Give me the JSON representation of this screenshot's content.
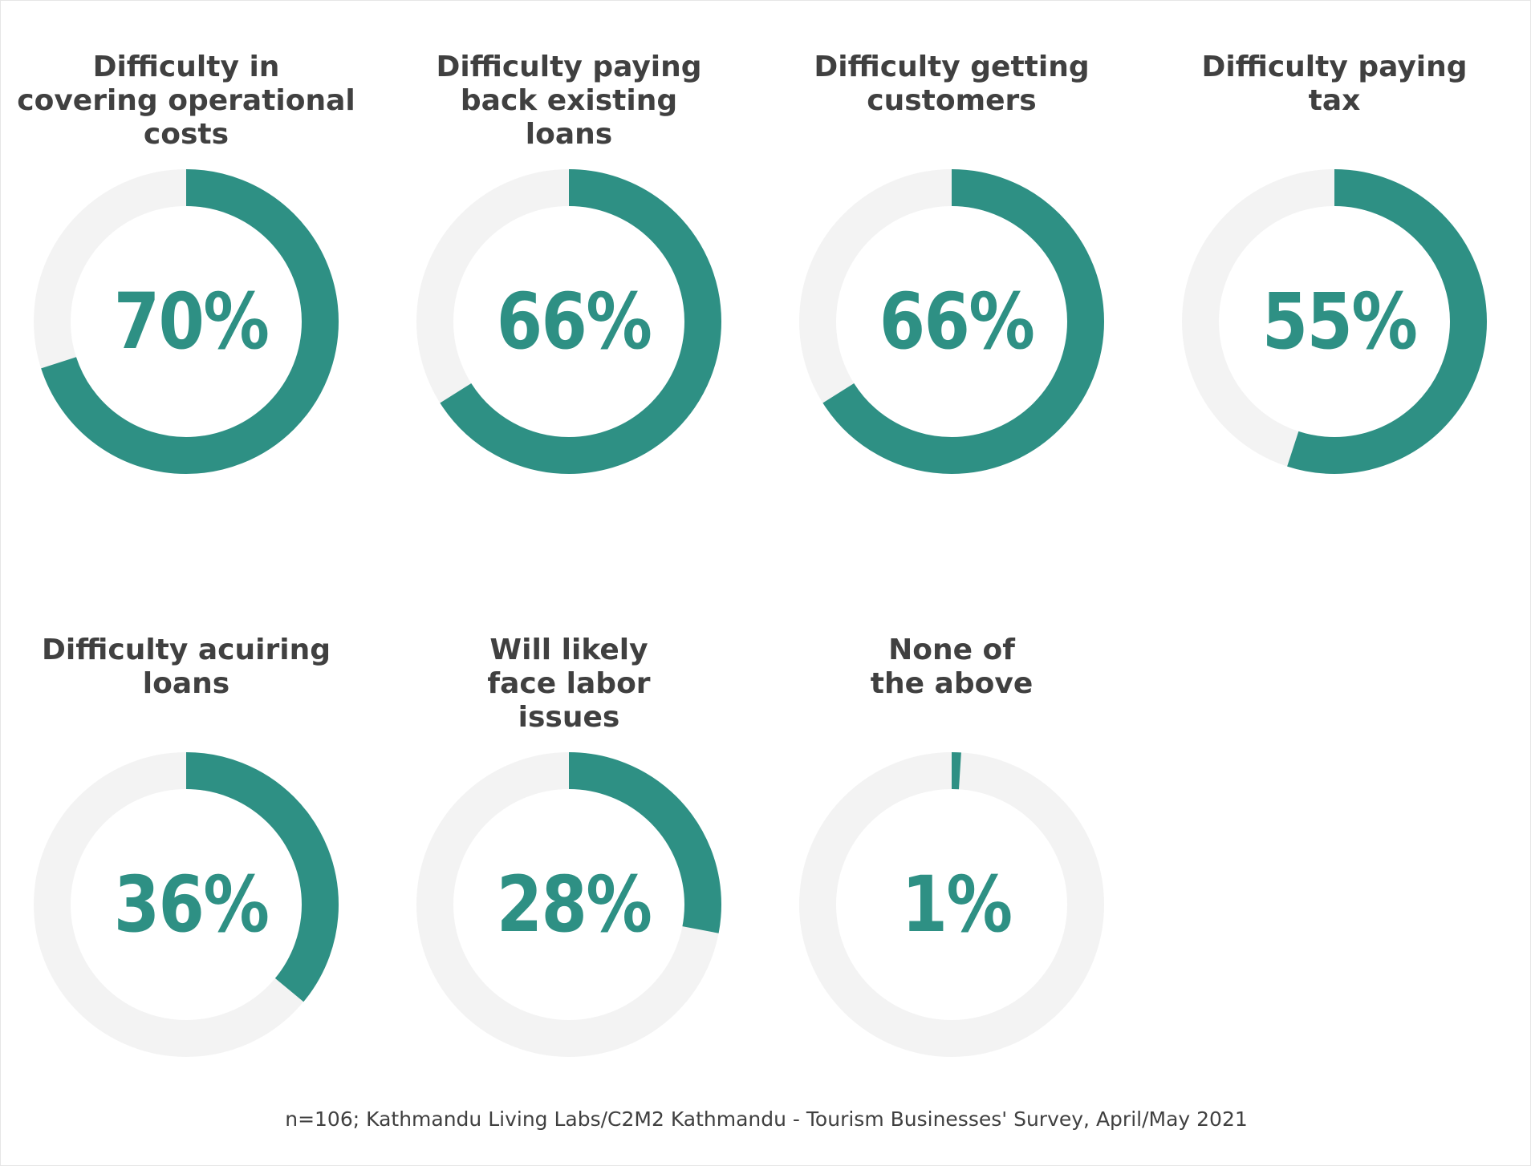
{
  "chart_data": {
    "type": "donut",
    "unit": "%",
    "colors": {
      "value": "#2e9084",
      "track": "#f3f3f3",
      "title": "#404040"
    },
    "panels": [
      {
        "title": "Difficulty in covering operational costs",
        "title_lines": [
          "Difficulty in",
          "covering operational",
          "costs"
        ],
        "value": 70,
        "label": "70%"
      },
      {
        "title": "Difficulty paying back existing loans",
        "title_lines": [
          "Difficulty paying",
          "back existing",
          "loans"
        ],
        "value": 66,
        "label": "66%"
      },
      {
        "title": "Difficulty getting customers",
        "title_lines": [
          "Difficulty getting",
          "customers"
        ],
        "value": 66,
        "label": "66%"
      },
      {
        "title": "Difficulty paying tax",
        "title_lines": [
          "Difficulty paying",
          "tax"
        ],
        "value": 55,
        "label": "55%"
      },
      {
        "title": "Difficulty acuiring loans",
        "title_lines": [
          "Difficulty acuiring",
          "loans"
        ],
        "value": 36,
        "label": "36%"
      },
      {
        "title": "Will likely face labor issues",
        "title_lines": [
          "Will likely",
          "face labor",
          "issues"
        ],
        "value": 28,
        "label": "28%"
      },
      {
        "title": "None of the above",
        "title_lines": [
          "None of",
          "the above"
        ],
        "value": 1,
        "label": "1%"
      }
    ],
    "source": "n=106; Kathmandu Living Labs/C2M2 Kathmandu - Tourism Businesses' Survey, April/May 2021"
  }
}
